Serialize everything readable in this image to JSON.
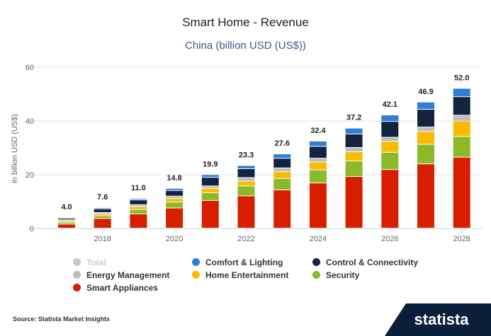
{
  "chart_data": {
    "type": "bar",
    "stacked": true,
    "title": "Smart Home - Revenue",
    "subtitle": "China (billion USD (US$))",
    "ylabel": "in billion USD (US$)",
    "xlabel": "",
    "ylim": [
      0,
      60
    ],
    "yticks": [
      0,
      20,
      40,
      60
    ],
    "categories": [
      "2017",
      "2018",
      "2019",
      "2020",
      "2021",
      "2022",
      "2023",
      "2024",
      "2025",
      "2026",
      "2027",
      "2028"
    ],
    "xtick_labels": [
      "2018",
      "2020",
      "2022",
      "2024",
      "2026",
      "2028"
    ],
    "totals": [
      "4.0",
      "7.6",
      "11.0",
      "14.8",
      "19.9",
      "23.3",
      "27.6",
      "32.4",
      "37.2",
      "42.1",
      "46.9",
      "52.0"
    ],
    "series": [
      {
        "name": "Smart Appliances",
        "color": "#d71f00",
        "values": [
          1.5,
          3.6,
          5.3,
          7.5,
          10.3,
          12.0,
          14.2,
          16.8,
          19.2,
          21.8,
          23.9,
          26.4
        ]
      },
      {
        "name": "Security",
        "color": "#8aba2a",
        "values": [
          0.7,
          1.0,
          1.6,
          2.2,
          2.9,
          3.7,
          4.3,
          4.9,
          5.8,
          6.4,
          7.3,
          7.7
        ]
      },
      {
        "name": "Home Entertainment",
        "color": "#fbb900",
        "values": [
          0.5,
          0.7,
          1.1,
          1.3,
          1.6,
          1.8,
          2.5,
          2.9,
          3.4,
          4.1,
          4.8,
          5.7
        ]
      },
      {
        "name": "Energy Management",
        "color": "#bdbdbd",
        "values": [
          0.4,
          0.5,
          0.7,
          0.9,
          0.9,
          1.3,
          1.4,
          1.4,
          1.6,
          1.5,
          1.6,
          2.2
        ]
      },
      {
        "name": "Control & Connectivity",
        "color": "#14243f",
        "values": [
          0.6,
          1.4,
          1.8,
          2.1,
          3.2,
          3.3,
          3.6,
          4.4,
          5.0,
          5.9,
          6.6,
          6.9
        ]
      },
      {
        "name": "Comfort & Lighting",
        "color": "#2f7ed8",
        "values": [
          0.3,
          0.4,
          0.5,
          0.8,
          1.0,
          1.2,
          1.6,
          2.0,
          2.2,
          2.4,
          2.7,
          3.1
        ]
      }
    ],
    "legend": [
      {
        "name": "Total",
        "color": "#c8c8c8",
        "muted": true
      },
      {
        "name": "Comfort & Lighting",
        "color": "#2f7ed8"
      },
      {
        "name": "Control & Connectivity",
        "color": "#14243f"
      },
      {
        "name": "Energy Management",
        "color": "#bdbdbd"
      },
      {
        "name": "Home Entertainment",
        "color": "#fbb900"
      },
      {
        "name": "Security",
        "color": "#8aba2a"
      },
      {
        "name": "Smart Appliances",
        "color": "#d71f00"
      }
    ],
    "grid": true,
    "legend_position": "bottom"
  },
  "footer": {
    "source": "Source: Statista Market Insights",
    "brand": "statista"
  }
}
